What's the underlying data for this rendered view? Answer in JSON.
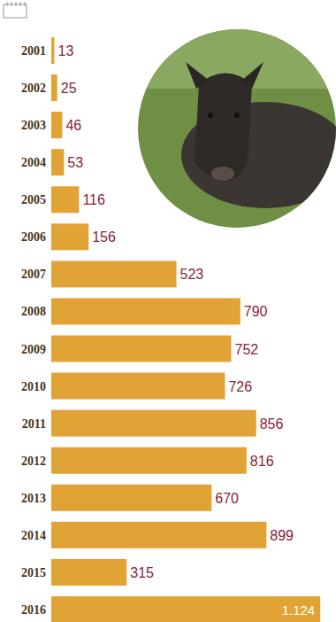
{
  "chart_data": {
    "type": "bar",
    "orientation": "horizontal",
    "categories": [
      "2001",
      "2002",
      "2003",
      "2004",
      "2005",
      "2006",
      "2007",
      "2008",
      "2009",
      "2010",
      "2011",
      "2012",
      "2013",
      "2014",
      "2015",
      "2016"
    ],
    "values": [
      13,
      25,
      46,
      53,
      116,
      156,
      523,
      790,
      752,
      726,
      856,
      816,
      670,
      899,
      315,
      1124
    ],
    "value_labels": [
      "13",
      "25",
      "46",
      "53",
      "116",
      "156",
      "523",
      "790",
      "752",
      "726",
      "856",
      "816",
      "670",
      "899",
      "315",
      "1.124"
    ],
    "color": "#e2a336",
    "xlim": [
      0,
      1175
    ],
    "data_labels": true,
    "tick_labels": "y",
    "grid": false
  }
}
